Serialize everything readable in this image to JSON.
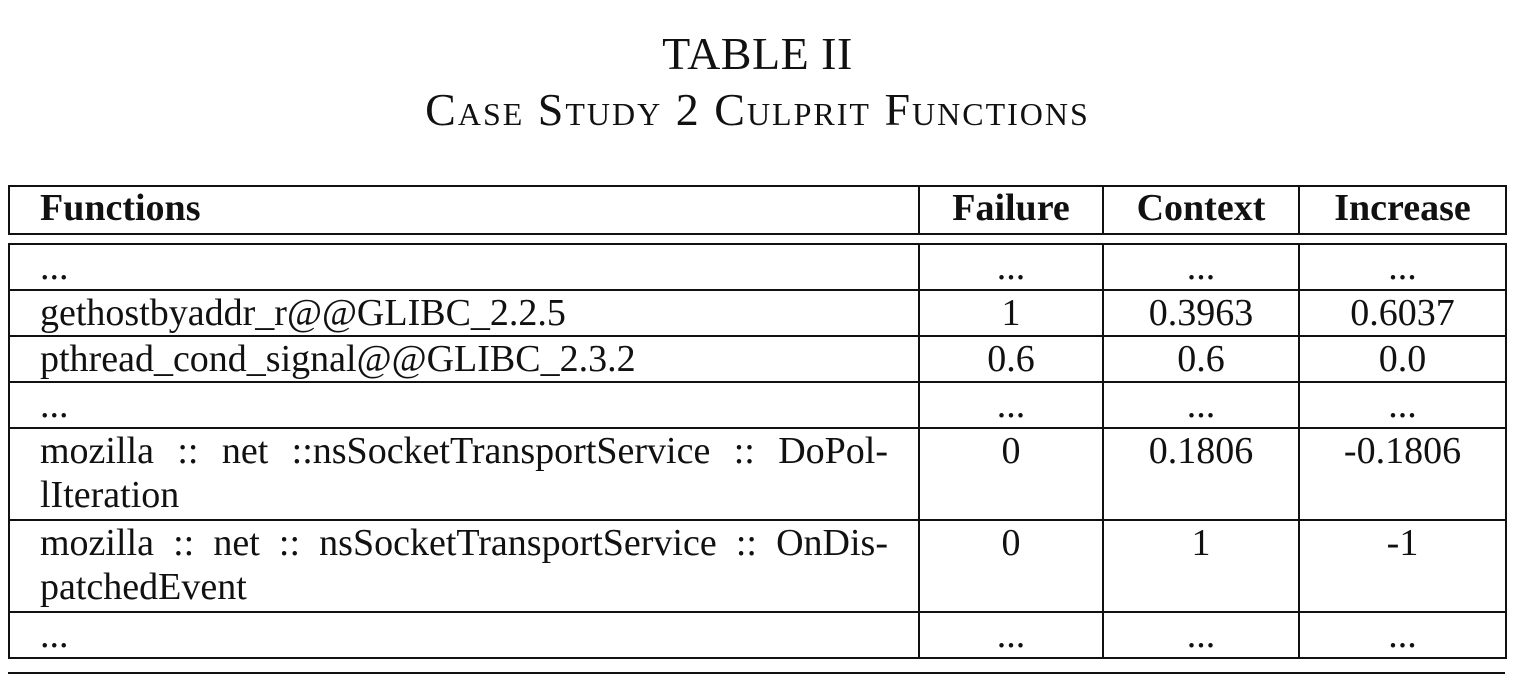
{
  "caption": {
    "label": "TABLE II",
    "title": "Case Study 2 Culprit Functions"
  },
  "table": {
    "headers": [
      "Functions",
      "Failure",
      "Context",
      "Increase"
    ],
    "rows": [
      {
        "function": "...",
        "failure": "...",
        "context": "...",
        "increase": "..."
      },
      {
        "function": "gethostbyaddr_r@@GLIBC_2.2.5",
        "failure": "1",
        "context": "0.3963",
        "increase": "0.6037"
      },
      {
        "function": "pthread_cond_signal@@GLIBC_2.3.2",
        "failure": "0.6",
        "context": "0.6",
        "increase": "0.0"
      },
      {
        "function": "...",
        "failure": "...",
        "context": "...",
        "increase": "..."
      },
      {
        "function": "mozilla :: net ::nsSocketTransportService :: DoPol-lIteration",
        "failure": "0",
        "context": "0.1806",
        "increase": "-0.1806"
      },
      {
        "function": "mozilla :: net :: nsSocketTransportService :: OnDis-patchedEvent",
        "failure": "0",
        "context": "1",
        "increase": "-1"
      },
      {
        "function": "...",
        "failure": "...",
        "context": "...",
        "increase": "..."
      }
    ]
  }
}
